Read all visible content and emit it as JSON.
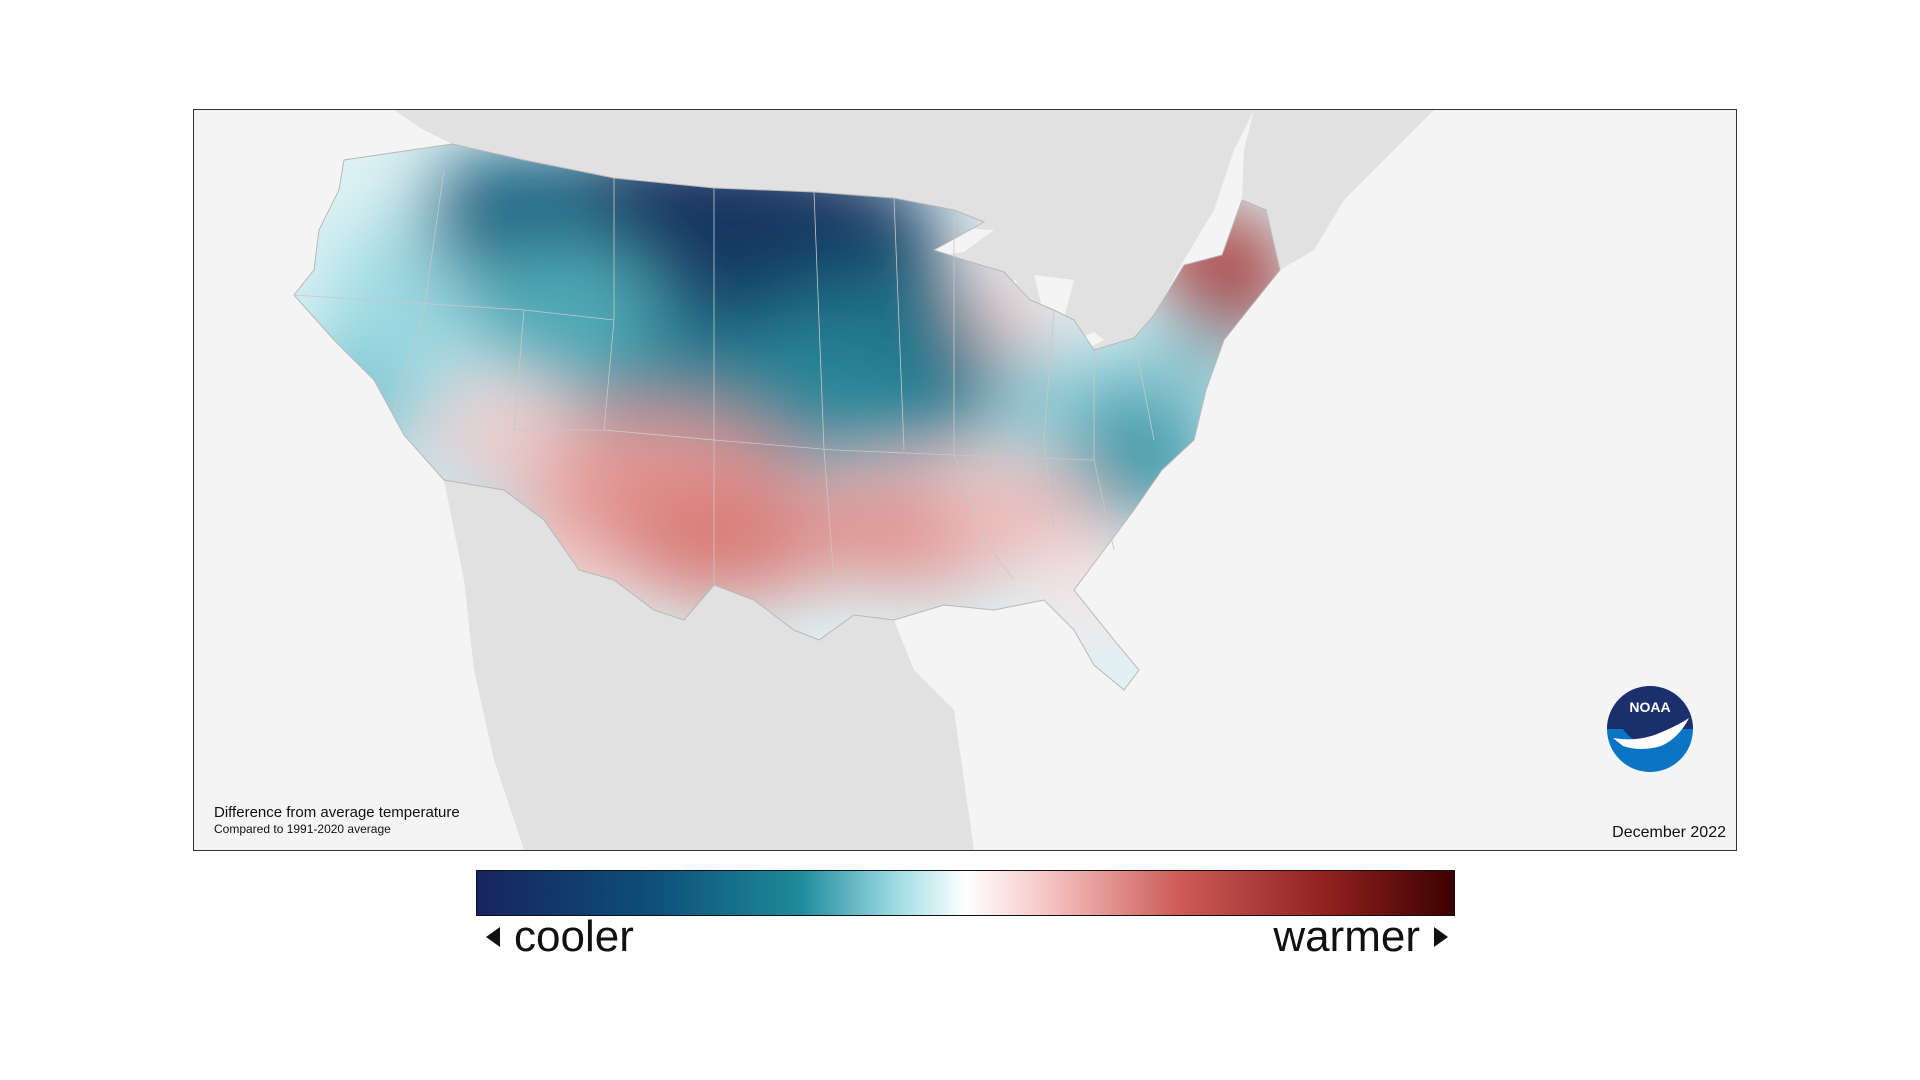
{
  "map": {
    "caption_line1": "Difference from average temperature",
    "caption_line2": "Compared to 1991-2020 average",
    "date": "December 2022",
    "logo_text": "NOAA"
  },
  "legend": {
    "cooler_label": "cooler",
    "warmer_label": "warmer",
    "colors": [
      "#16255e",
      "#0e4f78",
      "#1e8a9a",
      "#9fdce4",
      "#ffffff",
      "#f6c8c8",
      "#cc5a56",
      "#8b1d1d",
      "#3d0000"
    ]
  },
  "icons": {
    "left_arrow": "triangle-left-icon",
    "right_arrow": "triangle-right-icon",
    "logo": "noaa-logo-icon"
  }
}
